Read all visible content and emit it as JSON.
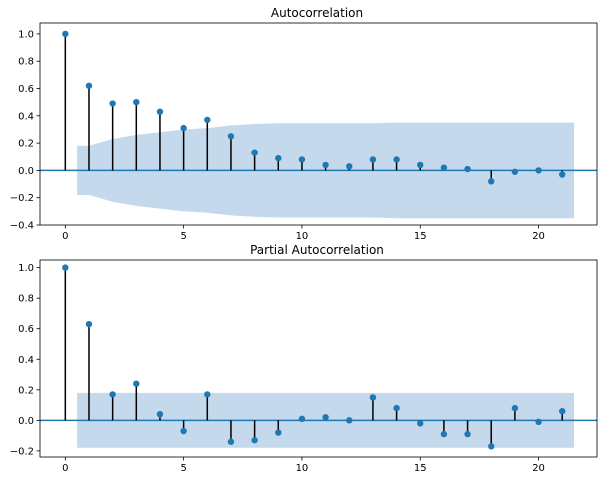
{
  "chart_data": [
    {
      "type": "stem",
      "title": "Autocorrelation",
      "xlabel": "",
      "ylabel": "",
      "xlim": [
        -1.07,
        22.47
      ],
      "ylim": [
        -0.4,
        1.08
      ],
      "x_ticks": [
        0,
        5,
        10,
        15,
        20
      ],
      "x_tick_labels": [
        "0",
        "5",
        "10",
        "15",
        "20"
      ],
      "y_ticks": [
        -0.4,
        -0.2,
        0.0,
        0.2,
        0.4,
        0.6,
        0.8,
        1.0
      ],
      "y_tick_labels": [
        "−0.4",
        "−0.2",
        "0.0",
        "0.2",
        "0.4",
        "0.6",
        "0.8",
        "1.0"
      ],
      "lags": [
        0,
        1,
        2,
        3,
        4,
        5,
        6,
        7,
        8,
        9,
        10,
        11,
        12,
        13,
        14,
        15,
        16,
        17,
        18,
        19,
        20,
        21
      ],
      "values": [
        1.0,
        0.62,
        0.49,
        0.5,
        0.43,
        0.31,
        0.37,
        0.25,
        0.13,
        0.09,
        0.08,
        0.04,
        0.03,
        0.08,
        0.08,
        0.04,
        0.02,
        0.01,
        -0.08,
        -0.01,
        0.0,
        -0.03
      ],
      "confidence_band": {
        "x": [
          0.5,
          1,
          2,
          3,
          4,
          5,
          6,
          7,
          8,
          9,
          10,
          11,
          12,
          13,
          14,
          15,
          16,
          17,
          18,
          19,
          20,
          21,
          21.5
        ],
        "upper": [
          0.18,
          0.18,
          0.23,
          0.26,
          0.28,
          0.3,
          0.31,
          0.33,
          0.34,
          0.345,
          0.345,
          0.345,
          0.345,
          0.345,
          0.35,
          0.35,
          0.35,
          0.35,
          0.35,
          0.35,
          0.35,
          0.35,
          0.35
        ],
        "lower": [
          -0.18,
          -0.18,
          -0.23,
          -0.26,
          -0.28,
          -0.3,
          -0.31,
          -0.33,
          -0.34,
          -0.345,
          -0.345,
          -0.345,
          -0.345,
          -0.345,
          -0.35,
          -0.35,
          -0.35,
          -0.35,
          -0.35,
          -0.35,
          -0.35,
          -0.35,
          -0.35
        ]
      },
      "colors": {
        "marker": "#1f77b4",
        "stem": "#000000",
        "band": "#c4d9ec",
        "baseline": "#1f77b4"
      },
      "grid": false
    },
    {
      "type": "stem",
      "title": "Partial Autocorrelation",
      "xlabel": "",
      "ylabel": "",
      "xlim": [
        -1.07,
        22.47
      ],
      "ylim": [
        -0.24,
        1.05
      ],
      "x_ticks": [
        0,
        5,
        10,
        15,
        20
      ],
      "x_tick_labels": [
        "0",
        "5",
        "10",
        "15",
        "20"
      ],
      "y_ticks": [
        -0.2,
        0.0,
        0.2,
        0.4,
        0.6,
        0.8,
        1.0
      ],
      "y_tick_labels": [
        "−0.2",
        "0.0",
        "0.2",
        "0.4",
        "0.6",
        "0.8",
        "1.0"
      ],
      "lags": [
        0,
        1,
        2,
        3,
        4,
        5,
        6,
        7,
        8,
        9,
        10,
        11,
        12,
        13,
        14,
        15,
        16,
        17,
        18,
        19,
        20,
        21
      ],
      "values": [
        1.0,
        0.63,
        0.17,
        0.24,
        0.04,
        -0.07,
        0.17,
        -0.14,
        -0.13,
        -0.08,
        0.01,
        0.02,
        0.0,
        0.15,
        0.08,
        -0.02,
        -0.09,
        -0.09,
        -0.17,
        0.08,
        -0.01,
        0.06
      ],
      "confidence_band": {
        "x": [
          0.5,
          21.5
        ],
        "upper": [
          0.18,
          0.18
        ],
        "lower": [
          -0.18,
          -0.18
        ]
      },
      "colors": {
        "marker": "#1f77b4",
        "stem": "#000000",
        "band": "#c4d9ec",
        "baseline": "#1f77b4"
      },
      "grid": false
    }
  ]
}
